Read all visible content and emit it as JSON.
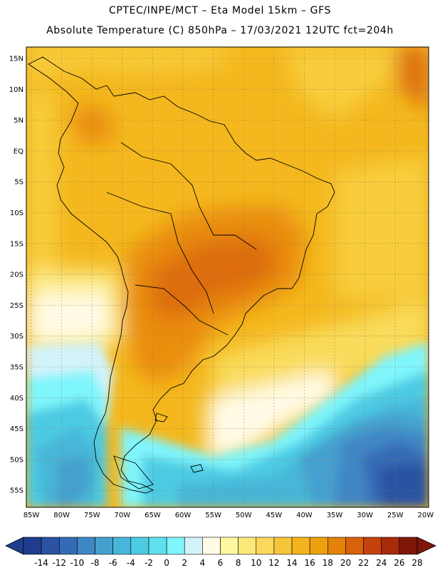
{
  "header": {
    "line1": "CPTEC/INPE/MCT –  Eta Model 15km – GFS",
    "line2": "Absolute Temperature (C) 850hPa – 17/03/2021 12UTC fct=204h"
  },
  "map": {
    "lat_labels": [
      "15N",
      "10N",
      "5N",
      "EQ",
      "5S",
      "10S",
      "15S",
      "20S",
      "25S",
      "30S",
      "35S",
      "40S",
      "45S",
      "50S",
      "55S"
    ],
    "lon_labels": [
      "85W",
      "80W",
      "75W",
      "70W",
      "65W",
      "60W",
      "55W",
      "50W",
      "45W",
      "40W",
      "35W",
      "30W",
      "25W",
      "20W"
    ]
  },
  "colorbar": {
    "labels": [
      "-14",
      "-12",
      "-10",
      "-8",
      "-6",
      "-4",
      "-2",
      "0",
      "2",
      "4",
      "6",
      "8",
      "10",
      "12",
      "14",
      "16",
      "18",
      "20",
      "22",
      "24",
      "26",
      "28"
    ],
    "colors": [
      "#1e3d8c",
      "#2a53a3",
      "#356bb6",
      "#3f86c4",
      "#45a0cf",
      "#47b6d8",
      "#4dcbe3",
      "#5ee0ed",
      "#7ff5fc",
      "#d3f3fb",
      "#fffbe6",
      "#fff7a0",
      "#fde97a",
      "#fbd85c",
      "#f6c63a",
      "#f2b31d",
      "#eca00d",
      "#e4820a",
      "#d8610c",
      "#c4430c",
      "#a52b0b",
      "#7f1708"
    ]
  }
}
